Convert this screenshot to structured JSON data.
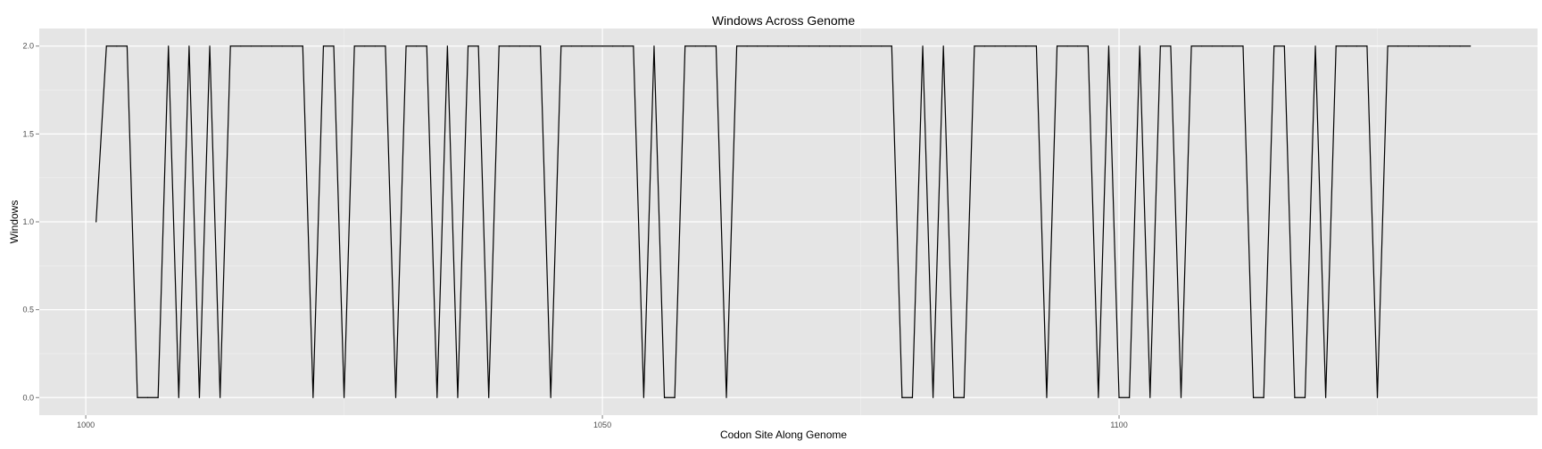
{
  "chart_data": {
    "type": "line",
    "title": "Windows Across Genome",
    "xlabel": "Codon Site Along Genome",
    "ylabel": "Windows",
    "xlim": [
      995.5,
      1140.5
    ],
    "ylim": [
      -0.1,
      2.1
    ],
    "x_ticks": [
      1000,
      1050,
      1100
    ],
    "x_tick_labels": [
      "1000",
      "1050",
      "1100"
    ],
    "y_ticks": [
      0.0,
      0.5,
      1.0,
      1.5,
      2.0
    ],
    "y_tick_labels": [
      "0.0",
      "0.5",
      "1.0",
      "1.5",
      "2.0"
    ],
    "grid": true,
    "legend": "none",
    "colors": {
      "panel": "#e5e5e5",
      "grid_major": "#ffffff",
      "grid_minor": "#f0f0f0",
      "line": "#000000",
      "tick_label": "#4d4d4d"
    },
    "series": [
      {
        "x": [
          1001,
          1002,
          1003,
          1004,
          1005,
          1006,
          1007,
          1008,
          1009,
          1010,
          1011,
          1012,
          1013,
          1014,
          1015,
          1016,
          1017,
          1018,
          1019,
          1020,
          1021,
          1022,
          1023,
          1024,
          1025,
          1026,
          1027,
          1028,
          1029,
          1030,
          1031,
          1032,
          1033,
          1034,
          1035,
          1036,
          1037,
          1038,
          1039,
          1040,
          1041,
          1042,
          1043,
          1044,
          1045,
          1046,
          1047,
          1048,
          1049,
          1050,
          1051,
          1052,
          1053,
          1054,
          1055,
          1056,
          1057,
          1058,
          1059,
          1060,
          1061,
          1062,
          1063,
          1064,
          1065,
          1066,
          1067,
          1068,
          1069,
          1070,
          1071,
          1072,
          1073,
          1074,
          1075,
          1076,
          1077,
          1078,
          1079,
          1080,
          1081,
          1082,
          1083,
          1084,
          1085,
          1086,
          1087,
          1088,
          1089,
          1090,
          1091,
          1092,
          1093,
          1094,
          1095,
          1096,
          1097,
          1098,
          1099,
          1100,
          1101,
          1102,
          1103,
          1104,
          1105,
          1106,
          1107,
          1108,
          1109,
          1110,
          1111,
          1112,
          1113,
          1114,
          1115,
          1116,
          1117,
          1118,
          1119,
          1120,
          1121,
          1122,
          1123,
          1124,
          1125,
          1126,
          1127,
          1128,
          1129,
          1130,
          1131,
          1132,
          1133,
          1134
        ],
        "values": [
          1,
          2,
          2,
          2,
          0,
          0,
          0,
          2,
          0,
          2,
          0,
          2,
          0,
          2,
          2,
          2,
          2,
          2,
          2,
          2,
          2,
          0,
          2,
          2,
          0,
          2,
          2,
          2,
          2,
          0,
          2,
          2,
          2,
          0,
          2,
          0,
          2,
          2,
          0,
          2,
          2,
          2,
          2,
          2,
          0,
          2,
          2,
          2,
          2,
          2,
          2,
          2,
          2,
          0,
          2,
          0,
          0,
          2,
          2,
          2,
          2,
          0,
          2,
          2,
          2,
          2,
          2,
          2,
          2,
          2,
          2,
          2,
          2,
          2,
          2,
          2,
          2,
          2,
          0,
          0,
          2,
          0,
          2,
          0,
          0,
          2,
          2,
          2,
          2,
          2,
          2,
          2,
          0,
          2,
          2,
          2,
          2,
          0,
          2,
          0,
          0,
          2,
          0,
          2,
          2,
          0,
          2,
          2,
          2,
          2,
          2,
          2,
          0,
          0,
          2,
          2,
          0,
          0,
          2,
          0,
          2,
          2,
          2,
          2,
          0,
          2,
          2,
          2,
          2,
          2,
          2,
          2,
          2,
          2
        ]
      }
    ]
  }
}
